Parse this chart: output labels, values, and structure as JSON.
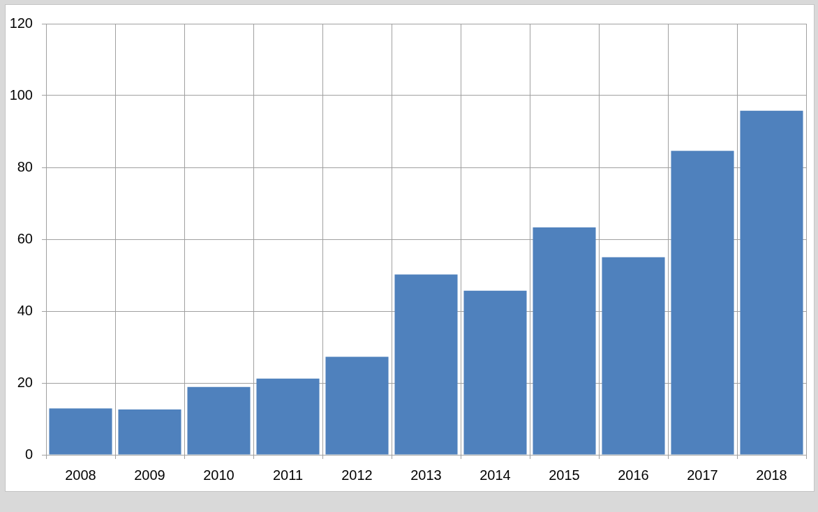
{
  "chart_data": {
    "type": "bar",
    "categories": [
      "2008",
      "2009",
      "2010",
      "2011",
      "2012",
      "2013",
      "2014",
      "2015",
      "2016",
      "2017",
      "2018"
    ],
    "values": [
      12.9,
      12.6,
      18.9,
      21.2,
      27.3,
      50.2,
      45.7,
      63.3,
      55.0,
      84.6,
      95.8
    ],
    "color": "#4f81bd",
    "ylim": [
      0,
      120
    ],
    "yticks": [
      0,
      20,
      40,
      60,
      80,
      100,
      120
    ],
    "grid": true
  }
}
